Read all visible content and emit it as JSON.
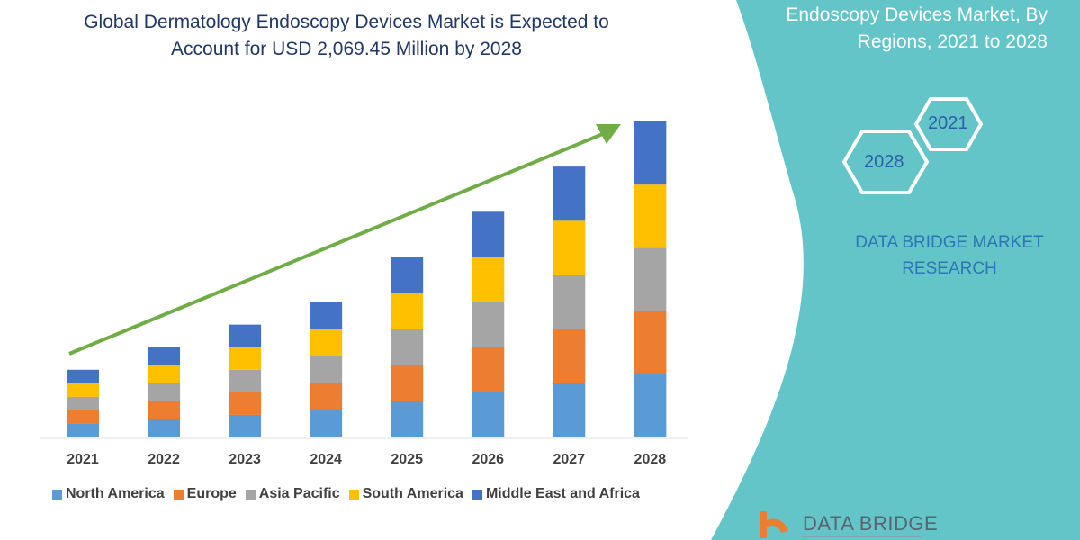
{
  "title_line1": "Global Dermatology Endoscopy Devices Market is Expected to",
  "title_line2": "Account for USD 2,069.45 Million by 2028",
  "side_panel": {
    "title_line1": "Endoscopy Devices Market, By",
    "title_line2": "Regions, 2021 to 2028",
    "hex_start": "2021",
    "hex_end": "2028",
    "brand_line1": "DATA BRIDGE MARKET",
    "brand_line2": "RESEARCH",
    "logo_text": "DATA BRIDGE",
    "color": "#63c5c8"
  },
  "chart_data": {
    "type": "bar",
    "stacked": true,
    "categories": [
      "2021",
      "2022",
      "2023",
      "2024",
      "2025",
      "2026",
      "2027",
      "2028"
    ],
    "series": [
      {
        "name": "North America",
        "color": "#5b9bd5",
        "values": [
          15,
          20,
          25,
          30,
          40,
          50,
          60,
          70
        ]
      },
      {
        "name": "Europe",
        "color": "#ed7d31",
        "values": [
          15,
          20,
          25,
          30,
          40,
          50,
          60,
          70
        ]
      },
      {
        "name": "Asia Pacific",
        "color": "#a5a5a5",
        "values": [
          15,
          20,
          25,
          30,
          40,
          50,
          60,
          70
        ]
      },
      {
        "name": "South America",
        "color": "#ffc000",
        "values": [
          15,
          20,
          25,
          30,
          40,
          50,
          60,
          70
        ]
      },
      {
        "name": "Middle East and Africa",
        "color": "#4472c4",
        "values": [
          15,
          20,
          25,
          30,
          40,
          50,
          60,
          70
        ]
      }
    ],
    "trend_arrow_color": "#70ad47",
    "grid": false,
    "yaxis_visible": false,
    "legend_position": "bottom"
  }
}
